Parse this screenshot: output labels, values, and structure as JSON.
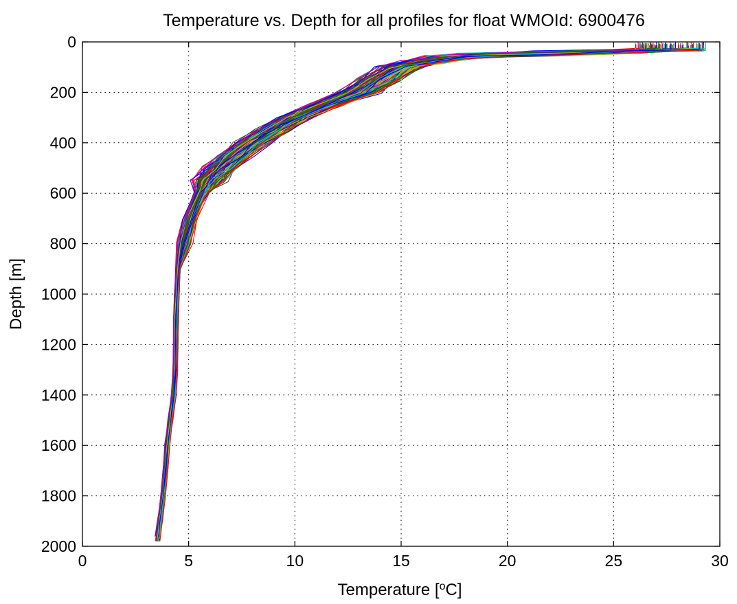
{
  "chart_data": {
    "type": "line",
    "title": "Temperature vs. Depth for all profiles for float WMOId: 6900476",
    "xlabel": "Temperature",
    "xlabel_unit_prefix": "[",
    "xlabel_unit_sup": "o",
    "xlabel_unit_suffix": "C]",
    "ylabel": "Depth [m]",
    "xlim": [
      0,
      30
    ],
    "ylim": [
      0,
      2000
    ],
    "y_reversed": true,
    "grid": true,
    "grid_style": "dotted",
    "x_ticks": [
      0,
      5,
      10,
      15,
      20,
      25,
      30
    ],
    "y_ticks": [
      0,
      200,
      400,
      600,
      800,
      1000,
      1200,
      1400,
      1600,
      1800,
      2000
    ],
    "series_colors": [
      "#0000ff",
      "#008000",
      "#ff0000",
      "#00bfbf",
      "#bf00bf",
      "#bfbf00",
      "#404040"
    ],
    "mean_profile": {
      "depth": [
        0,
        30,
        40,
        50,
        60,
        80,
        100,
        150,
        200,
        250,
        300,
        350,
        400,
        450,
        500,
        550,
        600,
        700,
        800,
        900,
        1000,
        1100,
        1200,
        1300,
        1400,
        1500,
        1600,
        1700,
        1800,
        1900,
        1980
      ],
      "temperature": [
        28.5,
        28.0,
        24.0,
        20.0,
        17.5,
        16.0,
        15.0,
        14.0,
        13.0,
        11.5,
        10.0,
        9.0,
        8.0,
        7.2,
        6.5,
        6.0,
        5.6,
        5.1,
        4.8,
        4.5,
        4.45,
        4.4,
        4.4,
        4.38,
        4.3,
        4.15,
        4.0,
        3.9,
        3.8,
        3.65,
        3.55
      ]
    },
    "profile_count": 120
  }
}
